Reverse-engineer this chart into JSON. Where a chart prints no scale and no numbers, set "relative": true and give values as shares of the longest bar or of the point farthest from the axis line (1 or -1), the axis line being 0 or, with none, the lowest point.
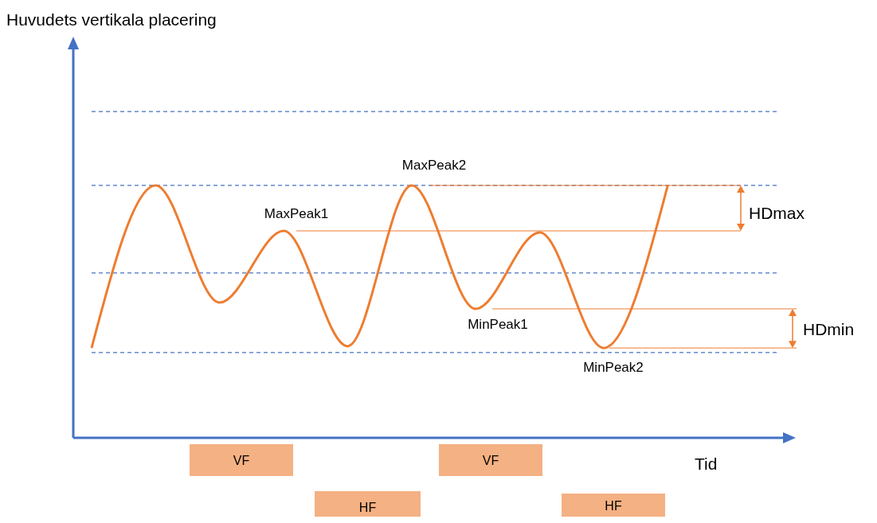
{
  "chart_data": {
    "type": "line",
    "relative": true,
    "xlabel": "Tid",
    "categories": [
      null,
      null,
      null,
      null,
      null,
      null,
      null,
      null,
      null,
      null
    ],
    "series": [
      {
        "color": "#ed7d31",
        "values": [
          0.356,
          1,
          0.536,
          0.82,
          0.363,
          1,
          0.511,
          0.814,
          0.356,
          1
        ]
      }
    ],
    "marker": "none",
    "line_style": "solid",
    "grid": false,
    "legend": false,
    "ref_lines": [
      {
        "axis": "y",
        "value": 1.293,
        "color": "#4472c4",
        "line_style": "dashed"
      },
      {
        "axis": "y",
        "value": 1,
        "color": "#4472c4",
        "line_style": "dashed"
      },
      {
        "axis": "y",
        "value": 0.653,
        "color": "#4472c4",
        "line_style": "dashed"
      },
      {
        "axis": "y",
        "value": 0.338,
        "color": "#4472c4",
        "line_style": "dashed"
      },
      {
        "axis": "y",
        "value": 1,
        "color": "#ed7d31",
        "line_style": "solid"
      },
      {
        "axis": "y",
        "value": 0.82,
        "color": "#ed7d31",
        "line_style": "solid"
      },
      {
        "axis": "y",
        "value": 0.511,
        "color": "#ed7d31",
        "line_style": "solid"
      },
      {
        "axis": "y",
        "value": 0.356,
        "color": "#ed7d31",
        "line_style": "solid"
      }
    ],
    "annotations": [
      {
        "text": "MaxPeak1",
        "y": 0.82
      },
      {
        "text": "MaxPeak2",
        "y": 1
      },
      {
        "text": "MinPeak1",
        "y": 0.511
      },
      {
        "text": "MinPeak2",
        "y": 0.356
      },
      "HDmax",
      "HDmin",
      "VF",
      "HF",
      "VF",
      "HF",
      "Huvudets vertikala placering"
    ]
  }
}
